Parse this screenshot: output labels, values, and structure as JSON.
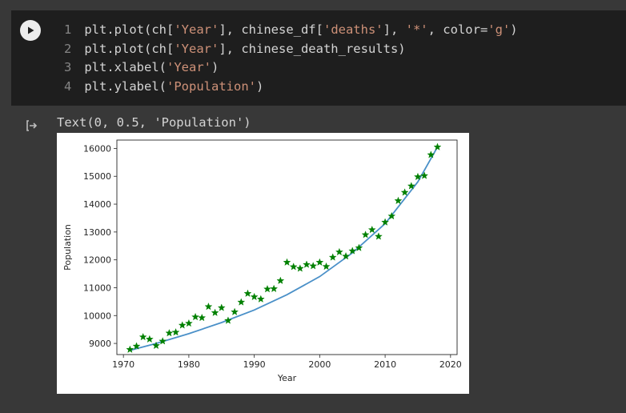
{
  "code_cell": {
    "lines": [
      {
        "num": "1",
        "parts": [
          {
            "t": "plt.plot(ch[",
            "s": ""
          },
          {
            "t": "'Year'",
            "s": "str"
          },
          {
            "t": "], chinese_df[",
            "s": ""
          },
          {
            "t": "'deaths'",
            "s": "str"
          },
          {
            "t": "], ",
            "s": ""
          },
          {
            "t": "'*'",
            "s": "str"
          },
          {
            "t": ", color=",
            "s": ""
          },
          {
            "t": "'g'",
            "s": "str"
          },
          {
            "t": ")",
            "s": ""
          }
        ]
      },
      {
        "num": "2",
        "parts": [
          {
            "t": "plt.plot(ch[",
            "s": ""
          },
          {
            "t": "'Year'",
            "s": "str"
          },
          {
            "t": "], chinese_death_results)",
            "s": ""
          }
        ]
      },
      {
        "num": "3",
        "parts": [
          {
            "t": "plt.xlabel(",
            "s": ""
          },
          {
            "t": "'Year'",
            "s": "str"
          },
          {
            "t": ")",
            "s": ""
          }
        ]
      },
      {
        "num": "4",
        "parts": [
          {
            "t": "plt.ylabel(",
            "s": ""
          },
          {
            "t": "'Population'",
            "s": "str"
          },
          {
            "t": ")",
            "s": ""
          }
        ]
      }
    ]
  },
  "output": {
    "text": "Text(0, 0.5, 'Population')"
  },
  "icons": {
    "run": "play-icon",
    "output": "output-arrow-icon"
  },
  "colors": {
    "points": "#008000",
    "fit_line": "#4a90c8",
    "code_bg": "#1e1e1e",
    "page_bg": "#383838",
    "string": "#ce9178"
  },
  "chart_data": {
    "type": "line",
    "xlabel": "Year",
    "ylabel": "Population",
    "xlim": [
      1969,
      2021
    ],
    "ylim": [
      8600,
      16300
    ],
    "xticks": [
      1970,
      1980,
      1990,
      2000,
      2010,
      2020
    ],
    "yticks": [
      9000,
      10000,
      11000,
      12000,
      13000,
      14000,
      15000,
      16000
    ],
    "series": [
      {
        "marker": "star",
        "x": [
          1971,
          1972,
          1973,
          1974,
          1975,
          1976,
          1977,
          1978,
          1979,
          1980,
          1981,
          1982,
          1983,
          1984,
          1985,
          1986,
          1987,
          1988,
          1989,
          1990,
          1991,
          1992,
          1993,
          1994,
          1995,
          1996,
          1997,
          1998,
          1999,
          2000,
          2001,
          2002,
          2003,
          2004,
          2005,
          2006,
          2007,
          2008,
          2009,
          2010,
          2011,
          2012,
          2013,
          2014,
          2015,
          2016,
          2017,
          2018
        ],
        "values": [
          8780,
          8900,
          9230,
          9150,
          8920,
          9080,
          9370,
          9400,
          9650,
          9720,
          9950,
          9920,
          10320,
          10100,
          10280,
          9820,
          10130,
          10480,
          10790,
          10670,
          10590,
          10950,
          10960,
          11250,
          11910,
          11750,
          11690,
          11830,
          11780,
          11910,
          11760,
          12090,
          12280,
          12130,
          12320,
          12430,
          12900,
          13080,
          12840,
          13350,
          13570,
          14120,
          14420,
          14650,
          14980,
          15020,
          15770,
          16050
        ]
      },
      {
        "marker": "line",
        "x": [
          1971,
          1975,
          1980,
          1985,
          1990,
          1995,
          2000,
          2005,
          2010,
          2015,
          2018
        ],
        "values": [
          8750,
          9000,
          9350,
          9750,
          10200,
          10750,
          11400,
          12250,
          13300,
          14800,
          16050
        ]
      }
    ]
  }
}
